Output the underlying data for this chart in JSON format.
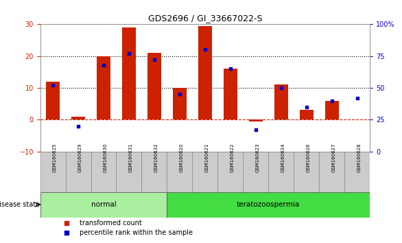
{
  "title": "GDS2696 / GI_33667022-S",
  "samples": [
    "GSM160625",
    "GSM160629",
    "GSM160630",
    "GSM160631",
    "GSM160632",
    "GSM160620",
    "GSM160621",
    "GSM160622",
    "GSM160623",
    "GSM160624",
    "GSM160626",
    "GSM160627",
    "GSM160628"
  ],
  "transformed_count": [
    12,
    1,
    20,
    29,
    21,
    10,
    29.5,
    16,
    -0.5,
    11,
    3,
    6,
    0
  ],
  "percentile_rank": [
    52,
    20,
    68,
    77,
    72,
    45,
    80,
    65,
    17,
    50,
    35,
    40,
    42
  ],
  "groups": [
    {
      "label": "normal",
      "start": 0,
      "end": 5,
      "color": "#AAEEA0"
    },
    {
      "label": "teratozoospermia",
      "start": 5,
      "end": 13,
      "color": "#44DD44"
    }
  ],
  "bar_color": "#CC2200",
  "dot_color": "#0000CC",
  "ylim_left": [
    -10,
    30
  ],
  "ylim_right": [
    0,
    100
  ],
  "yticks_left": [
    -10,
    0,
    10,
    20,
    30
  ],
  "yticks_right": [
    0,
    25,
    50,
    75,
    100
  ],
  "ytick_labels_right": [
    "0",
    "25",
    "50",
    "75",
    "100%"
  ],
  "disease_state_label": "disease state",
  "legend_items": [
    {
      "label": "transformed count",
      "color": "#CC2200"
    },
    {
      "label": "percentile rank within the sample",
      "color": "#0000CC"
    }
  ]
}
